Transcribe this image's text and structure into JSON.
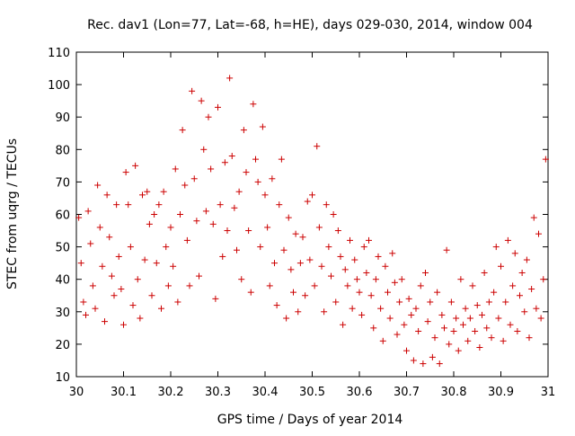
{
  "chart_data": {
    "type": "scatter",
    "title": "Rec. dav1 (Lon=77, Lat=-68, h=HE), days 029-030, 2014, window 004",
    "xlabel": "GPS time / Days of year 2014",
    "ylabel": "STEC from uqrg / TECUs",
    "xlim": [
      30,
      31
    ],
    "ylim": [
      10,
      110
    ],
    "xticks": [
      "30",
      "30.1",
      "30.2",
      "30.3",
      "30.4",
      "30.5",
      "30.6",
      "30.7",
      "30.8",
      "30.9",
      "31"
    ],
    "yticks": [
      "10",
      "20",
      "30",
      "40",
      "50",
      "60",
      "70",
      "80",
      "90",
      "100",
      "110"
    ],
    "grid": false,
    "legend": "none",
    "marker": "+",
    "color": "#cc0000",
    "series": [
      {
        "points": [
          [
            30.005,
            59
          ],
          [
            30.01,
            45
          ],
          [
            30.015,
            33
          ],
          [
            30.02,
            29
          ],
          [
            30.025,
            61
          ],
          [
            30.03,
            51
          ],
          [
            30.035,
            38
          ],
          [
            30.04,
            31
          ],
          [
            30.045,
            69
          ],
          [
            30.05,
            56
          ],
          [
            30.055,
            44
          ],
          [
            30.06,
            27
          ],
          [
            30.065,
            66
          ],
          [
            30.07,
            53
          ],
          [
            30.075,
            41
          ],
          [
            30.08,
            35
          ],
          [
            30.085,
            63
          ],
          [
            30.09,
            47
          ],
          [
            30.095,
            37
          ],
          [
            30.1,
            26
          ],
          [
            30.105,
            73
          ],
          [
            30.11,
            63
          ],
          [
            30.115,
            50
          ],
          [
            30.12,
            32
          ],
          [
            30.125,
            75
          ],
          [
            30.13,
            40
          ],
          [
            30.135,
            28
          ],
          [
            30.14,
            66
          ],
          [
            30.145,
            46
          ],
          [
            30.15,
            67
          ],
          [
            30.155,
            57
          ],
          [
            30.16,
            35
          ],
          [
            30.165,
            60
          ],
          [
            30.17,
            45
          ],
          [
            30.175,
            63
          ],
          [
            30.18,
            31
          ],
          [
            30.185,
            67
          ],
          [
            30.19,
            50
          ],
          [
            30.195,
            38
          ],
          [
            30.2,
            56
          ],
          [
            30.205,
            44
          ],
          [
            30.21,
            74
          ],
          [
            30.215,
            33
          ],
          [
            30.22,
            60
          ],
          [
            30.225,
            86
          ],
          [
            30.23,
            69
          ],
          [
            30.235,
            52
          ],
          [
            30.24,
            38
          ],
          [
            30.245,
            98
          ],
          [
            30.25,
            71
          ],
          [
            30.255,
            58
          ],
          [
            30.26,
            41
          ],
          [
            30.265,
            95
          ],
          [
            30.27,
            80
          ],
          [
            30.275,
            61
          ],
          [
            30.28,
            90
          ],
          [
            30.285,
            74
          ],
          [
            30.29,
            57
          ],
          [
            30.295,
            34
          ],
          [
            30.3,
            93
          ],
          [
            30.305,
            63
          ],
          [
            30.31,
            47
          ],
          [
            30.315,
            76
          ],
          [
            30.32,
            55
          ],
          [
            30.325,
            102
          ],
          [
            30.33,
            78
          ],
          [
            30.335,
            62
          ],
          [
            30.34,
            49
          ],
          [
            30.345,
            67
          ],
          [
            30.35,
            40
          ],
          [
            30.355,
            86
          ],
          [
            30.36,
            73
          ],
          [
            30.365,
            55
          ],
          [
            30.37,
            36
          ],
          [
            30.375,
            94
          ],
          [
            30.38,
            77
          ],
          [
            30.385,
            70
          ],
          [
            30.39,
            50
          ],
          [
            30.395,
            87
          ],
          [
            30.4,
            66
          ],
          [
            30.405,
            56
          ],
          [
            30.41,
            38
          ],
          [
            30.415,
            71
          ],
          [
            30.42,
            45
          ],
          [
            30.425,
            32
          ],
          [
            30.43,
            63
          ],
          [
            30.435,
            77
          ],
          [
            30.44,
            49
          ],
          [
            30.445,
            28
          ],
          [
            30.45,
            59
          ],
          [
            30.455,
            43
          ],
          [
            30.46,
            36
          ],
          [
            30.465,
            54
          ],
          [
            30.47,
            30
          ],
          [
            30.475,
            45
          ],
          [
            30.48,
            53
          ],
          [
            30.485,
            35
          ],
          [
            30.49,
            64
          ],
          [
            30.495,
            46
          ],
          [
            30.5,
            66
          ],
          [
            30.505,
            38
          ],
          [
            30.51,
            81
          ],
          [
            30.515,
            56
          ],
          [
            30.52,
            44
          ],
          [
            30.525,
            30
          ],
          [
            30.53,
            63
          ],
          [
            30.535,
            50
          ],
          [
            30.54,
            41
          ],
          [
            30.545,
            60
          ],
          [
            30.55,
            33
          ],
          [
            30.555,
            55
          ],
          [
            30.56,
            47
          ],
          [
            30.565,
            26
          ],
          [
            30.57,
            43
          ],
          [
            30.575,
            38
          ],
          [
            30.58,
            52
          ],
          [
            30.585,
            31
          ],
          [
            30.59,
            46
          ],
          [
            30.595,
            40
          ],
          [
            30.6,
            36
          ],
          [
            30.605,
            29
          ],
          [
            30.61,
            50
          ],
          [
            30.615,
            42
          ],
          [
            30.62,
            52
          ],
          [
            30.625,
            35
          ],
          [
            30.63,
            25
          ],
          [
            30.635,
            40
          ],
          [
            30.64,
            47
          ],
          [
            30.645,
            31
          ],
          [
            30.65,
            21
          ],
          [
            30.655,
            44
          ],
          [
            30.66,
            36
          ],
          [
            30.665,
            28
          ],
          [
            30.67,
            48
          ],
          [
            30.675,
            39
          ],
          [
            30.68,
            23
          ],
          [
            30.685,
            33
          ],
          [
            30.69,
            40
          ],
          [
            30.695,
            26
          ],
          [
            30.7,
            18
          ],
          [
            30.705,
            34
          ],
          [
            30.71,
            29
          ],
          [
            30.715,
            15
          ],
          [
            30.72,
            31
          ],
          [
            30.725,
            24
          ],
          [
            30.73,
            38
          ],
          [
            30.735,
            14
          ],
          [
            30.74,
            42
          ],
          [
            30.745,
            27
          ],
          [
            30.75,
            33
          ],
          [
            30.755,
            16
          ],
          [
            30.76,
            22
          ],
          [
            30.765,
            36
          ],
          [
            30.77,
            14
          ],
          [
            30.775,
            29
          ],
          [
            30.78,
            25
          ],
          [
            30.785,
            49
          ],
          [
            30.79,
            20
          ],
          [
            30.795,
            33
          ],
          [
            30.8,
            24
          ],
          [
            30.805,
            28
          ],
          [
            30.81,
            18
          ],
          [
            30.815,
            40
          ],
          [
            30.82,
            26
          ],
          [
            30.825,
            31
          ],
          [
            30.83,
            21
          ],
          [
            30.835,
            28
          ],
          [
            30.84,
            38
          ],
          [
            30.845,
            24
          ],
          [
            30.85,
            32
          ],
          [
            30.855,
            19
          ],
          [
            30.86,
            29
          ],
          [
            30.865,
            42
          ],
          [
            30.87,
            25
          ],
          [
            30.875,
            33
          ],
          [
            30.88,
            22
          ],
          [
            30.885,
            36
          ],
          [
            30.89,
            50
          ],
          [
            30.895,
            28
          ],
          [
            30.9,
            44
          ],
          [
            30.905,
            21
          ],
          [
            30.91,
            33
          ],
          [
            30.915,
            52
          ],
          [
            30.92,
            26
          ],
          [
            30.925,
            38
          ],
          [
            30.93,
            48
          ],
          [
            30.935,
            24
          ],
          [
            30.94,
            35
          ],
          [
            30.945,
            42
          ],
          [
            30.95,
            30
          ],
          [
            30.955,
            46
          ],
          [
            30.96,
            22
          ],
          [
            30.965,
            37
          ],
          [
            30.97,
            59
          ],
          [
            30.975,
            31
          ],
          [
            30.98,
            54
          ],
          [
            30.985,
            28
          ],
          [
            30.99,
            40
          ],
          [
            30.995,
            77
          ]
        ]
      }
    ]
  }
}
